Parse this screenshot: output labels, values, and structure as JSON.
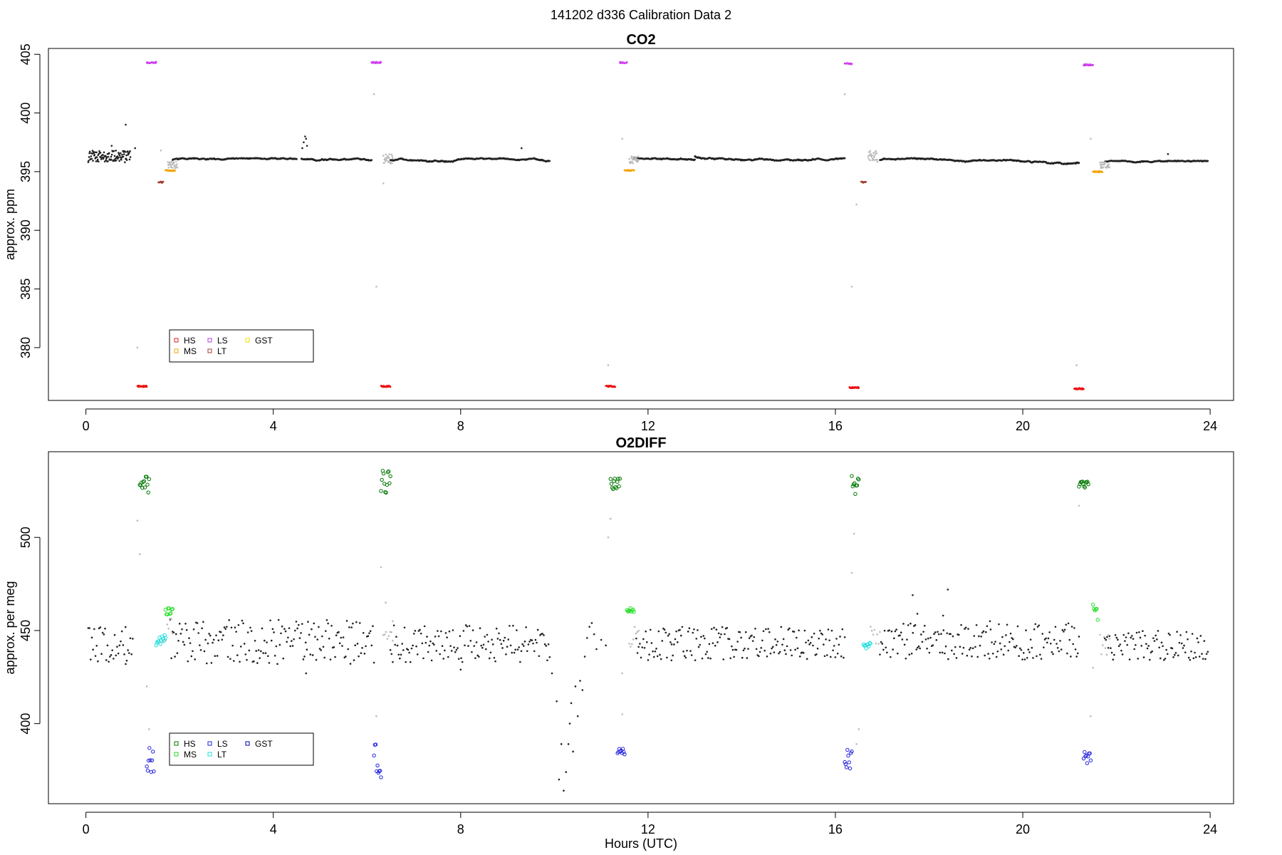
{
  "figure": {
    "title": "141202   d336   Calibration Data 2"
  },
  "chart_data": [
    {
      "type": "scatter",
      "title": "CO2",
      "xlabel": "",
      "ylabel": "approx. ppm",
      "xlim": [
        -0.8,
        24.5
      ],
      "ylim": [
        375.5,
        405.5
      ],
      "xticks": [
        0,
        4,
        8,
        12,
        16,
        20,
        24
      ],
      "yticks": [
        380,
        385,
        390,
        395,
        400,
        405
      ],
      "legend": {
        "placement": "bottom-left",
        "entries": [
          {
            "label": "HS",
            "color": "#dd2222"
          },
          {
            "label": "MS",
            "color": "#f5a300"
          },
          {
            "label": "LS",
            "color": "#b040e0"
          },
          {
            "label": "LT",
            "color": "#a04030"
          },
          {
            "label": "GST",
            "color": "#e8e000"
          }
        ]
      },
      "series": [
        {
          "color": "#222222",
          "segments": [
            [
              0.05,
              0.95,
              396.3,
              0.5
            ],
            [
              1.85,
              4.5,
              396.0,
              0.15
            ],
            [
              4.6,
              6.1,
              396.1,
              0.15
            ],
            [
              6.5,
              9.9,
              396.0,
              0.15
            ],
            [
              11.7,
              13.0,
              396.1,
              0.2
            ],
            [
              13.0,
              16.2,
              396.3,
              0.35
            ],
            [
              16.95,
              21.2,
              396.0,
              0.35
            ],
            [
              21.75,
              23.95,
              395.8,
              0.12
            ]
          ],
          "points": [
            [
              0.85,
              399.0
            ],
            [
              0.55,
              397.2
            ],
            [
              1.05,
              397.0
            ],
            [
              4.62,
              397.0
            ],
            [
              4.65,
              397.5
            ],
            [
              4.68,
              398.0
            ],
            [
              4.7,
              397.8
            ],
            [
              4.72,
              397.2
            ],
            [
              9.3,
              397.0
            ],
            [
              23.1,
              396.5
            ]
          ]
        },
        {
          "color": "#bbbbbb",
          "segments": [
            [
              1.75,
              1.95,
              395.6,
              0.3
            ],
            [
              6.35,
              6.55,
              396.1,
              0.4
            ],
            [
              11.6,
              11.8,
              396.0,
              0.3
            ],
            [
              16.7,
              16.9,
              396.3,
              0.5
            ],
            [
              21.65,
              21.85,
              395.6,
              0.3
            ]
          ],
          "points": [
            [
              1.1,
              380.0
            ],
            [
              1.6,
              396.8
            ],
            [
              6.15,
              401.6
            ],
            [
              6.2,
              385.2
            ],
            [
              6.35,
              394.0
            ],
            [
              11.15,
              378.5
            ],
            [
              11.45,
              397.8
            ],
            [
              16.2,
              401.6
            ],
            [
              16.35,
              385.2
            ],
            [
              16.45,
              392.2
            ],
            [
              21.15,
              378.5
            ],
            [
              21.45,
              397.8
            ]
          ]
        },
        {
          "color": "#d040f0",
          "segments": [
            [
              1.3,
              1.5,
              404.3,
              0.06
            ],
            [
              6.1,
              6.3,
              404.3,
              0.06
            ],
            [
              11.4,
              11.55,
              404.3,
              0.06
            ],
            [
              16.2,
              16.35,
              404.2,
              0.06
            ],
            [
              21.3,
              21.5,
              404.1,
              0.06
            ]
          ],
          "points": []
        },
        {
          "color": "#ee1111",
          "segments": [
            [
              1.1,
              1.3,
              376.7,
              0.06
            ],
            [
              6.3,
              6.5,
              376.7,
              0.06
            ],
            [
              11.1,
              11.3,
              376.7,
              0.06
            ],
            [
              16.3,
              16.5,
              376.6,
              0.06
            ],
            [
              21.1,
              21.3,
              376.5,
              0.06
            ]
          ],
          "points": []
        },
        {
          "color": "#f5a300",
          "segments": [
            [
              1.7,
              1.9,
              395.1,
              0.05
            ],
            [
              11.5,
              11.7,
              395.1,
              0.05
            ],
            [
              21.5,
              21.7,
              395.0,
              0.05
            ]
          ],
          "points": []
        },
        {
          "color": "#a04030",
          "segments": [
            [
              1.55,
              1.65,
              394.1,
              0.05
            ],
            [
              16.55,
              16.65,
              394.1,
              0.05
            ]
          ],
          "points": []
        }
      ]
    },
    {
      "type": "scatter",
      "title": "O2DIFF",
      "xlabel": "Hours (UTC)",
      "ylabel": "approx. per meg",
      "xlim": [
        -0.8,
        24.5
      ],
      "ylim": [
        357,
        546
      ],
      "xticks": [
        0,
        4,
        8,
        12,
        16,
        20,
        24
      ],
      "yticks": [
        400,
        450,
        500
      ],
      "legend": {
        "placement": "bottom-left",
        "entries": [
          {
            "label": "HS",
            "color": "#007700"
          },
          {
            "label": "MS",
            "color": "#22dd22"
          },
          {
            "label": "LS",
            "color": "#2222dd"
          },
          {
            "label": "LT",
            "color": "#22dddd"
          },
          {
            "label": "GST",
            "color": "#0000aa"
          }
        ]
      },
      "series": [
        {
          "color": "#222222",
          "segments": [
            [
              0.05,
              1.0,
              442,
              10
            ],
            [
              1.8,
              6.15,
              444,
              12
            ],
            [
              6.5,
              9.9,
              443,
              10
            ],
            [
              11.75,
              16.2,
              443,
              9
            ],
            [
              16.95,
              21.2,
              444,
              10
            ],
            [
              21.75,
              23.95,
              442,
              8
            ]
          ],
          "points": [
            [
              0.85,
              432
            ],
            [
              4.7,
              427
            ],
            [
              8.0,
              429
            ],
            [
              9.95,
              427
            ],
            [
              10.05,
              412
            ],
            [
              10.1,
              370
            ],
            [
              10.15,
              389
            ],
            [
              10.2,
              364
            ],
            [
              10.25,
              374
            ],
            [
              10.3,
              389
            ],
            [
              10.33,
              400
            ],
            [
              10.36,
              411
            ],
            [
              10.4,
              385
            ],
            [
              10.45,
              420
            ],
            [
              10.5,
              404
            ],
            [
              10.55,
              423
            ],
            [
              10.6,
              418
            ],
            [
              10.65,
              436
            ],
            [
              10.7,
              446
            ],
            [
              10.75,
              452
            ],
            [
              10.8,
              454
            ],
            [
              10.85,
              448
            ],
            [
              10.9,
              440
            ],
            [
              11.0,
              445
            ],
            [
              11.1,
              442
            ],
            [
              12.5,
              434
            ],
            [
              17.65,
              469
            ],
            [
              17.75,
              459
            ],
            [
              18.3,
              458
            ],
            [
              18.4,
              472
            ],
            [
              19.3,
              455
            ]
          ]
        },
        {
          "color": "#bbbbbb",
          "segments": [
            [
              1.65,
              1.85,
              450,
              7
            ],
            [
              6.35,
              6.55,
              446,
              6
            ],
            [
              11.6,
              11.8,
              447,
              6
            ],
            [
              16.75,
              16.95,
              446,
              7
            ],
            [
              21.65,
              21.85,
              442,
              6
            ]
          ],
          "points": [
            [
              1.1,
              509
            ],
            [
              1.15,
              491
            ],
            [
              1.3,
              420
            ],
            [
              1.35,
              397
            ],
            [
              6.2,
              404
            ],
            [
              6.3,
              484
            ],
            [
              6.4,
              465
            ],
            [
              6.55,
              455
            ],
            [
              11.15,
              500
            ],
            [
              11.2,
              510
            ],
            [
              11.45,
              427
            ],
            [
              11.45,
              405
            ],
            [
              16.35,
              481
            ],
            [
              16.4,
              502
            ],
            [
              16.45,
              389
            ],
            [
              16.5,
              397
            ],
            [
              21.2,
              517
            ],
            [
              21.45,
              404
            ],
            [
              21.5,
              430
            ]
          ]
        },
        {
          "color": "#007700",
          "segments": [
            [
              1.15,
              1.35,
              528,
              5
            ],
            [
              6.3,
              6.5,
              530,
              6
            ],
            [
              11.2,
              11.4,
              529,
              4
            ],
            [
              16.35,
              16.5,
              528,
              5
            ],
            [
              21.2,
              21.4,
              528,
              3
            ]
          ],
          "points": []
        },
        {
          "color": "#22dd22",
          "segments": [
            [
              1.7,
              1.85,
              460,
              2
            ],
            [
              11.55,
              11.7,
              461,
              1
            ],
            [
              21.5,
              21.6,
              458,
              6
            ]
          ],
          "points": []
        },
        {
          "color": "#22dddd",
          "segments": [
            [
              1.5,
              1.7,
              445,
              3
            ],
            [
              16.6,
              16.75,
              442,
              2
            ]
          ],
          "points": []
        },
        {
          "color": "#2222dd",
          "segments": [
            [
              1.3,
              1.45,
              382,
              8
            ],
            [
              6.15,
              6.3,
              380,
              9
            ],
            [
              11.35,
              11.5,
              385,
              2
            ],
            [
              16.2,
              16.35,
              380,
              6
            ],
            [
              21.3,
              21.45,
              382,
              4
            ]
          ],
          "points": []
        }
      ]
    }
  ]
}
